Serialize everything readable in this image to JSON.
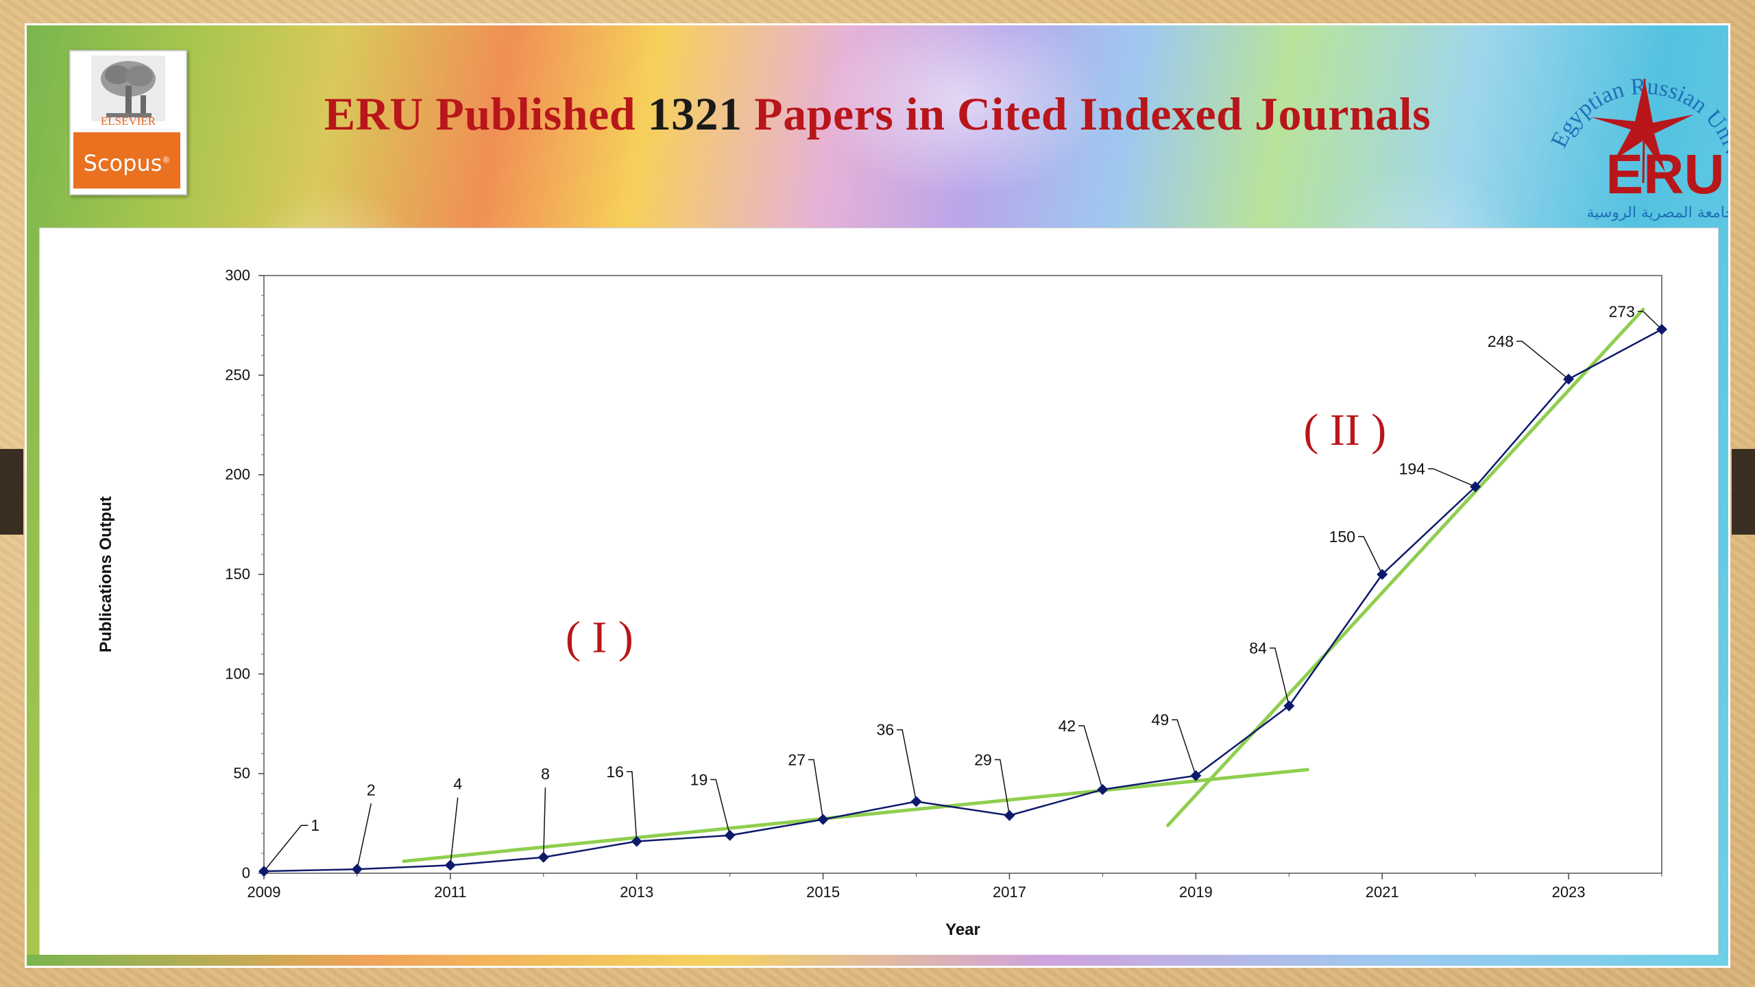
{
  "page": {
    "title_part1": "ERU Published ",
    "title_number": "1321",
    "title_part2": " Papers in Cited Indexed Journals"
  },
  "logos": {
    "scopus": {
      "publisher": "ELSEVIER",
      "name": "Scopus",
      "mark": "®"
    },
    "eru": {
      "arc_text": "Egyptian Russian University",
      "acronym": "ERU",
      "arabic_name": "الجامعة المصرية الروسية",
      "colors": {
        "arc": "#1f6fb8",
        "star": "#b8161a",
        "acronym": "#b8161a",
        "arabic": "#1f6fb8"
      }
    }
  },
  "colors": {
    "title": "#b8161a",
    "title_number": "#1a1a1a",
    "series_line": "#0d1a6b",
    "trend_line": "#8fce4f",
    "phase_label": "#b8161a"
  },
  "chart_data": {
    "type": "line",
    "title": "",
    "xlabel": "Year",
    "ylabel": "Publications Output",
    "xlim": [
      2009,
      2024
    ],
    "ylim": [
      0,
      300
    ],
    "x_ticks": [
      2009,
      2011,
      2013,
      2015,
      2017,
      2019,
      2021,
      2023
    ],
    "y_ticks": [
      0,
      50,
      100,
      150,
      200,
      250,
      300
    ],
    "grid": false,
    "legend": "none",
    "series": [
      {
        "x": [
          2009,
          2010,
          2011,
          2012,
          2013,
          2014,
          2015,
          2016,
          2017,
          2018,
          2019,
          2020,
          2021,
          2022,
          2023,
          2024
        ],
        "values": [
          1,
          2,
          4,
          8,
          16,
          19,
          27,
          36,
          29,
          42,
          49,
          84,
          150,
          194,
          248,
          273
        ],
        "marker": "diamond"
      }
    ],
    "point_labels": [
      {
        "x": 2009,
        "y": 1,
        "text": "1",
        "lx": 2009.4,
        "ly": 24
      },
      {
        "x": 2010,
        "y": 2,
        "text": "2",
        "lx": 2010.15,
        "ly": 35
      },
      {
        "x": 2011,
        "y": 4,
        "text": "4",
        "lx": 2011.08,
        "ly": 38
      },
      {
        "x": 2012,
        "y": 8,
        "text": "8",
        "lx": 2012.02,
        "ly": 43
      },
      {
        "x": 2013,
        "y": 16,
        "text": "16",
        "lx": 2012.95,
        "ly": 51
      },
      {
        "x": 2014,
        "y": 19,
        "text": "19",
        "lx": 2013.85,
        "ly": 47
      },
      {
        "x": 2015,
        "y": 27,
        "text": "27",
        "lx": 2014.9,
        "ly": 57
      },
      {
        "x": 2016,
        "y": 36,
        "text": "36",
        "lx": 2015.85,
        "ly": 72
      },
      {
        "x": 2017,
        "y": 29,
        "text": "29",
        "lx": 2016.9,
        "ly": 57
      },
      {
        "x": 2018,
        "y": 42,
        "text": "42",
        "lx": 2017.8,
        "ly": 74
      },
      {
        "x": 2019,
        "y": 49,
        "text": "49",
        "lx": 2018.8,
        "ly": 77
      },
      {
        "x": 2020,
        "y": 84,
        "text": "84",
        "lx": 2019.85,
        "ly": 113
      },
      {
        "x": 2021,
        "y": 150,
        "text": "150",
        "lx": 2020.8,
        "ly": 169
      },
      {
        "x": 2022,
        "y": 194,
        "text": "194",
        "lx": 2021.55,
        "ly": 203
      },
      {
        "x": 2023,
        "y": 248,
        "text": "248",
        "lx": 2022.5,
        "ly": 267
      },
      {
        "x": 2024,
        "y": 273,
        "text": "273",
        "lx": 2023.8,
        "ly": 282
      }
    ],
    "trend_lines": [
      {
        "from": [
          2010.5,
          6
        ],
        "to": [
          2020.2,
          52
        ]
      },
      {
        "from": [
          2018.7,
          24
        ],
        "to": [
          2023.8,
          283
        ]
      }
    ],
    "annotations": [
      {
        "text": "( I )",
        "x": 2012.6,
        "y": 111
      },
      {
        "text": "( II )",
        "x": 2020.6,
        "y": 215
      }
    ]
  }
}
